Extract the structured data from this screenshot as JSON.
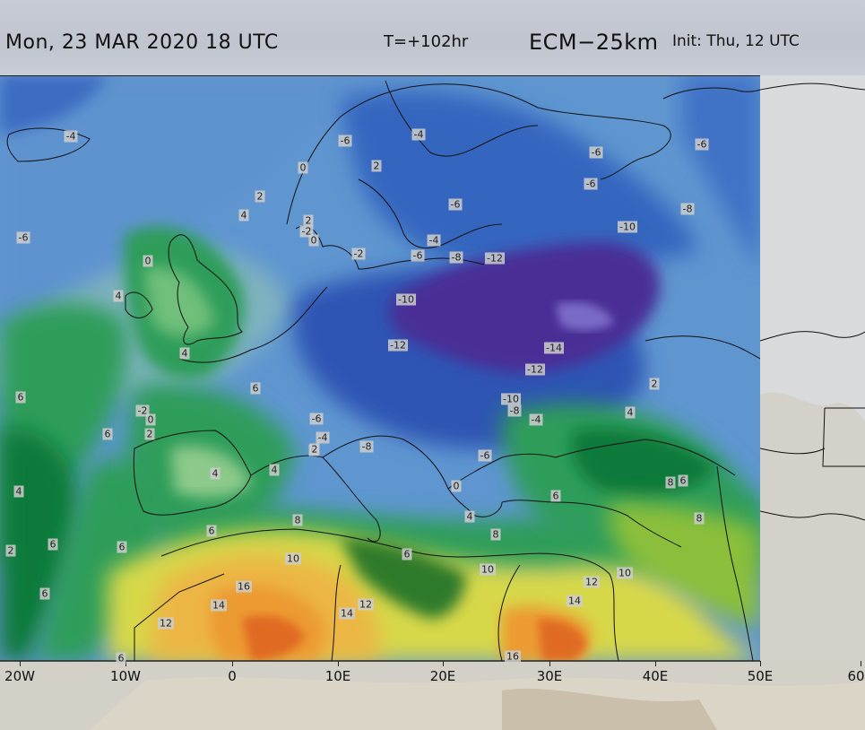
{
  "header": {
    "valid_time": "Mon, 23 MAR 2020  18 UTC",
    "forecast_step": "T=+102hr",
    "model": "ECM−25km",
    "init": "Init:  Thu, 12  UTC"
  },
  "map": {
    "variable": "temperature contours",
    "projection_extent_lon": [
      -20,
      60
    ],
    "x_ticks": [
      "20W",
      "10W",
      "0",
      "10E",
      "20E",
      "30E",
      "40E",
      "50E",
      "60"
    ],
    "colors": {
      "very_cold": "#4a2f96",
      "cold": "#2f5db8",
      "cool": "#4f8ed0",
      "mild": "#7fb6c4",
      "green_light": "#8cc98a",
      "green": "#2f9d5a",
      "green_dark": "#0f7a3a",
      "yellow": "#e6d84a",
      "orange": "#ec9a32",
      "red_orange": "#e06a22",
      "outside_domain": "#d6d8da"
    },
    "contour_labels": [
      {
        "v": "-4"
      },
      {
        "v": "-6"
      },
      {
        "v": "-4"
      },
      {
        "v": "-6"
      },
      {
        "v": "-6"
      },
      {
        "v": "-6"
      },
      {
        "v": "-6"
      },
      {
        "v": "-8"
      },
      {
        "v": "-10"
      },
      {
        "v": "-6"
      },
      {
        "v": "-4"
      },
      {
        "v": "-6"
      },
      {
        "v": "-8"
      },
      {
        "v": "-12"
      },
      {
        "v": "-10"
      },
      {
        "v": "-12"
      },
      {
        "v": "-14"
      },
      {
        "v": "-12"
      },
      {
        "v": "-10"
      },
      {
        "v": "-8"
      },
      {
        "v": "-4"
      },
      {
        "v": "-6"
      },
      {
        "v": "-2"
      },
      {
        "v": "-4"
      },
      {
        "v": "-8"
      },
      {
        "v": "-6"
      },
      {
        "v": "-2"
      },
      {
        "v": "-2"
      },
      {
        "v": "2"
      },
      {
        "v": "2"
      },
      {
        "v": "2"
      },
      {
        "v": "4"
      },
      {
        "v": "0"
      },
      {
        "v": "0"
      },
      {
        "v": "0"
      },
      {
        "v": "4"
      },
      {
        "v": "4"
      },
      {
        "v": "6"
      },
      {
        "v": "6"
      },
      {
        "v": "0"
      },
      {
        "v": "2"
      },
      {
        "v": "6"
      },
      {
        "v": "4"
      },
      {
        "v": "4"
      },
      {
        "v": "6"
      },
      {
        "v": "2"
      },
      {
        "v": "4"
      },
      {
        "v": "6"
      },
      {
        "v": "8"
      },
      {
        "v": "6"
      },
      {
        "v": "6"
      },
      {
        "v": "6"
      },
      {
        "v": "8"
      },
      {
        "v": "6"
      },
      {
        "v": "10"
      },
      {
        "v": "6"
      },
      {
        "v": "8"
      },
      {
        "v": "10"
      },
      {
        "v": "12"
      },
      {
        "v": "10"
      },
      {
        "v": "16"
      },
      {
        "v": "14"
      },
      {
        "v": "12"
      },
      {
        "v": "14"
      },
      {
        "v": "12"
      },
      {
        "v": "14"
      },
      {
        "v": "16"
      },
      {
        "v": "6"
      },
      {
        "v": "2"
      },
      {
        "v": "4"
      },
      {
        "v": "8"
      },
      {
        "v": "4"
      },
      {
        "v": "6"
      },
      {
        "v": "0"
      },
      {
        "v": "2"
      }
    ]
  }
}
